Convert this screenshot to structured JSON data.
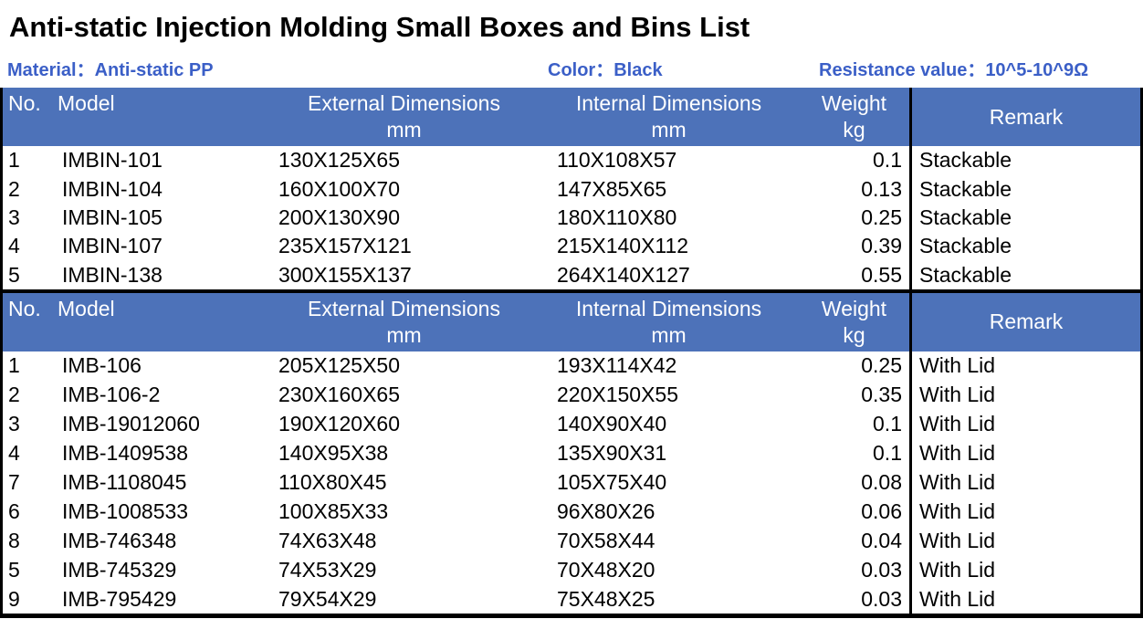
{
  "title": "Anti-static Injection Molding Small Boxes and Bins List",
  "meta": {
    "material": "Material：Anti-static PP",
    "color": "Color：Black",
    "resistance": "Resistance value：10^5-10^9Ω"
  },
  "colors": {
    "header_background": "#4D72B9",
    "header_text": "#FFFFFF",
    "meta_text": "#3B5FC7",
    "body_text": "#000000",
    "border": "#000000"
  },
  "headers": {
    "no": "No.",
    "model": "Model",
    "external": "External Dimensions",
    "external_unit": "mm",
    "internal": "Internal Dimensions",
    "internal_unit": "mm",
    "weight": "Weight",
    "weight_unit": "kg",
    "remark": "Remark"
  },
  "tables": [
    {
      "name": "stackable-bins",
      "rows": [
        [
          "1",
          "IMBIN-101",
          "130X125X65",
          "110X108X57",
          "0.1",
          "Stackable"
        ],
        [
          "2",
          "IMBIN-104",
          "160X100X70",
          "147X85X65",
          "0.13",
          "Stackable"
        ],
        [
          "3",
          "IMBIN-105",
          "200X130X90",
          "180X110X80",
          "0.25",
          "Stackable"
        ],
        [
          "4",
          "IMBIN-107",
          "235X157X121",
          "215X140X112",
          "0.39",
          "Stackable"
        ],
        [
          "5",
          "IMBIN-138",
          "300X155X137",
          "264X140X127",
          "0.55",
          "Stackable"
        ]
      ]
    },
    {
      "name": "lidded-boxes",
      "rows": [
        [
          "1",
          "IMB-106",
          "205X125X50",
          "193X114X42",
          "0.25",
          "With Lid"
        ],
        [
          "2",
          "IMB-106-2",
          "230X160X65",
          "220X150X55",
          "0.35",
          "With Lid"
        ],
        [
          "3",
          "IMB-19012060",
          "190X120X60",
          "140X90X40",
          "0.1",
          "With Lid"
        ],
        [
          "4",
          "IMB-1409538",
          "140X95X38",
          "135X90X31",
          "0.1",
          "With Lid"
        ],
        [
          "7",
          "IMB-1108045",
          "110X80X45",
          "105X75X40",
          "0.08",
          "With Lid"
        ],
        [
          "6",
          "IMB-1008533",
          "100X85X33",
          "96X80X26",
          "0.06",
          "With Lid"
        ],
        [
          "8",
          "IMB-746348",
          "74X63X48",
          "70X58X44",
          "0.04",
          "With Lid"
        ],
        [
          "5",
          "IMB-745329",
          "74X53X29",
          "70X48X20",
          "0.03",
          "With Lid"
        ],
        [
          "9",
          "IMB-795429",
          "79X54X29",
          "75X48X25",
          "0.03",
          "With Lid"
        ]
      ]
    }
  ]
}
